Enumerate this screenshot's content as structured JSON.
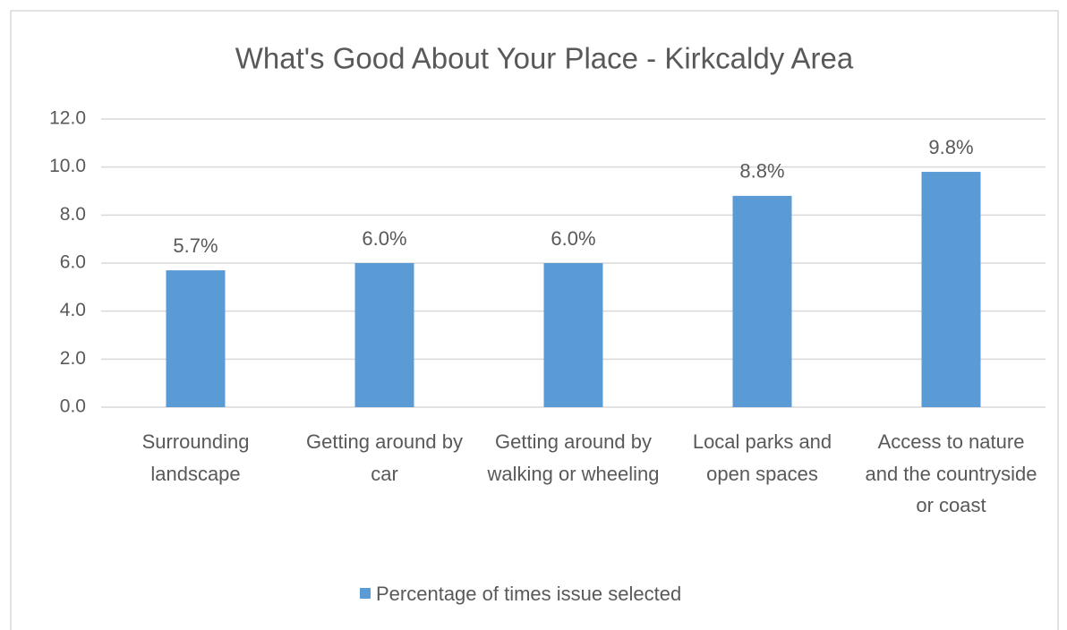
{
  "chart_data": {
    "type": "bar",
    "title": "What's Good About Your Place - Kirkcaldy Area",
    "categories": [
      "Surrounding landscape",
      "Getting around by car",
      "Getting around by walking or wheeling",
      "Local parks and open spaces",
      "Access to nature and the countryside or coast"
    ],
    "series": [
      {
        "name": "Percentage of times issue selected",
        "color": "#5b9bd5",
        "values": [
          5.7,
          6.0,
          6.0,
          8.8,
          9.8
        ],
        "value_labels": [
          "5.7%",
          "6.0%",
          "6.0%",
          "8.8%",
          "9.8%"
        ]
      }
    ],
    "ylim": [
      0,
      12
    ],
    "yticks": [
      {
        "value": 0,
        "label": "0.0"
      },
      {
        "value": 2,
        "label": "2.0"
      },
      {
        "value": 4,
        "label": "4.0"
      },
      {
        "value": 6,
        "label": "6.0"
      },
      {
        "value": 8,
        "label": "8.0"
      },
      {
        "value": 10,
        "label": "10.0"
      },
      {
        "value": 12,
        "label": "12.0"
      }
    ],
    "grid": true,
    "legend": "bottom"
  }
}
